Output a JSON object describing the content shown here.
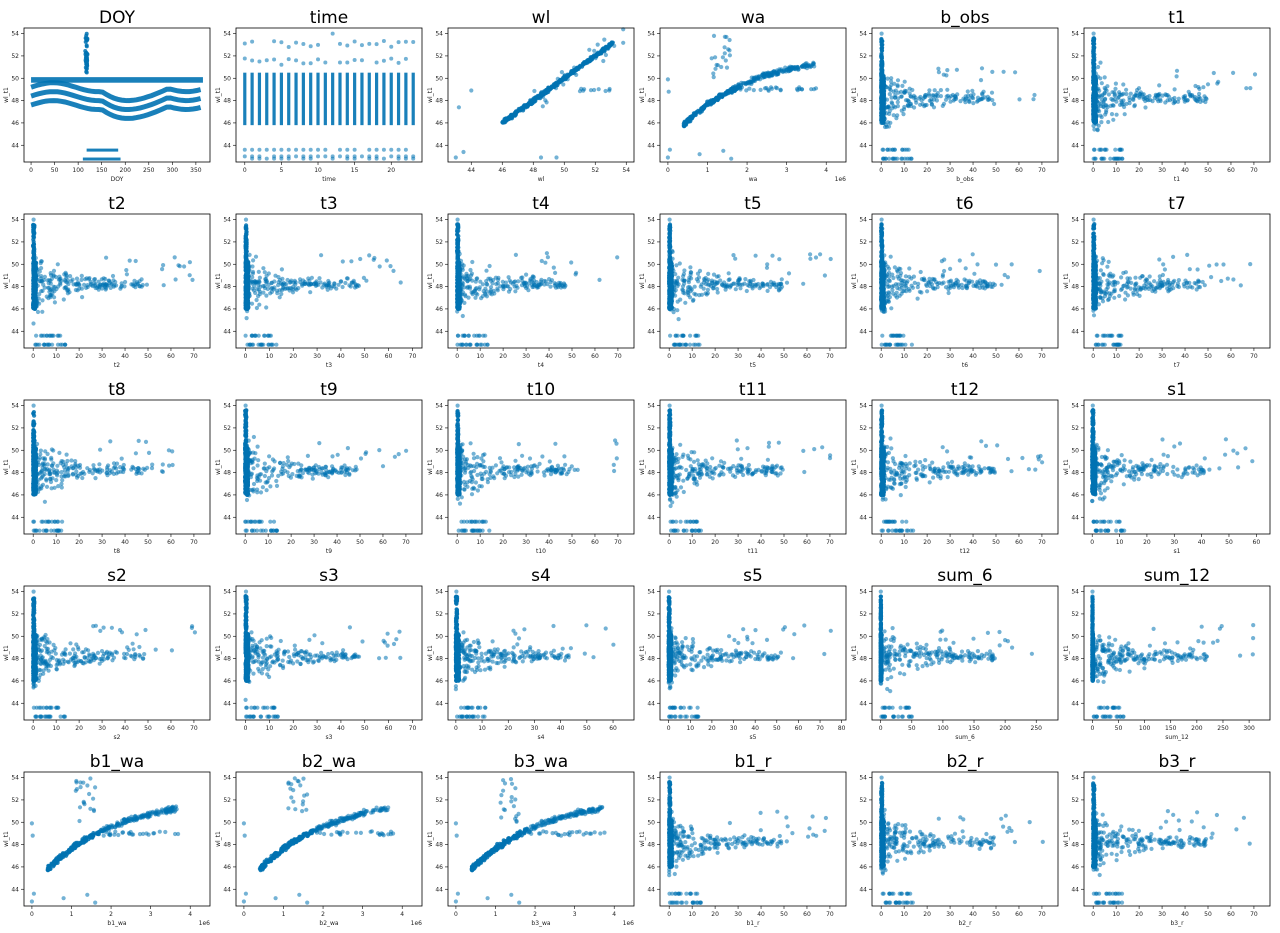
{
  "figure": {
    "ylabel": "wl_t1",
    "ylim": [
      42.5,
      54.5
    ],
    "yticks": [
      44,
      46,
      48,
      50,
      52,
      54
    ],
    "point_color": "#0072b2"
  },
  "chart_data": [
    {
      "type": "scatter",
      "title": "DOY",
      "xlabel": "DOY",
      "xlim": [
        -15,
        380
      ],
      "xticks": [
        0,
        50,
        100,
        150,
        200,
        250,
        300,
        350
      ],
      "multiplier": "",
      "pattern": "doy",
      "y": "wl_t1"
    },
    {
      "type": "scatter",
      "title": "time",
      "xlabel": "time",
      "xlim": [
        -1.2,
        24.2
      ],
      "xticks": [
        0,
        5,
        10,
        15,
        20
      ],
      "multiplier": "",
      "pattern": "time",
      "y": "wl_t1"
    },
    {
      "type": "scatter",
      "title": "wl",
      "xlabel": "wl",
      "xlim": [
        42.5,
        54.5
      ],
      "xticks": [
        44,
        46,
        48,
        50,
        52,
        54
      ],
      "multiplier": "",
      "pattern": "diag",
      "y": "wl_t1"
    },
    {
      "type": "scatter",
      "title": "wa",
      "xlabel": "wa",
      "xlim": [
        -0.2,
        4.5
      ],
      "xticks": [
        0,
        1,
        2,
        3,
        4
      ],
      "multiplier": "1e6",
      "pattern": "wa",
      "y": "wl_t1"
    },
    {
      "type": "scatter",
      "title": "b_obs",
      "xlabel": "b_obs",
      "xlim": [
        -4,
        77
      ],
      "xticks": [
        0,
        10,
        20,
        30,
        40,
        50,
        60,
        70
      ],
      "multiplier": "",
      "pattern": "rain",
      "y": "wl_t1"
    },
    {
      "type": "scatter",
      "title": "t1",
      "xlabel": "t1",
      "xlim": [
        -4,
        77
      ],
      "xticks": [
        0,
        10,
        20,
        30,
        40,
        50,
        60,
        70
      ],
      "multiplier": "",
      "pattern": "rain",
      "y": "wl_t1"
    },
    {
      "type": "scatter",
      "title": "t2",
      "xlabel": "t2",
      "xlim": [
        -4,
        77
      ],
      "xticks": [
        0,
        10,
        20,
        30,
        40,
        50,
        60,
        70
      ],
      "multiplier": "",
      "pattern": "rain",
      "y": "wl_t1"
    },
    {
      "type": "scatter",
      "title": "t3",
      "xlabel": "t3",
      "xlim": [
        -4,
        74
      ],
      "xticks": [
        0,
        10,
        20,
        30,
        40,
        50,
        60,
        70
      ],
      "multiplier": "",
      "pattern": "rain",
      "y": "wl_t1"
    },
    {
      "type": "scatter",
      "title": "t4",
      "xlabel": "t4",
      "xlim": [
        -4,
        77
      ],
      "xticks": [
        0,
        10,
        20,
        30,
        40,
        50,
        60,
        70
      ],
      "multiplier": "",
      "pattern": "rain",
      "y": "wl_t1"
    },
    {
      "type": "scatter",
      "title": "t5",
      "xlabel": "t5",
      "xlim": [
        -4,
        77
      ],
      "xticks": [
        0,
        10,
        20,
        30,
        40,
        50,
        60,
        70
      ],
      "multiplier": "",
      "pattern": "rain",
      "y": "wl_t1"
    },
    {
      "type": "scatter",
      "title": "t6",
      "xlabel": "t6",
      "xlim": [
        -4,
        77
      ],
      "xticks": [
        0,
        10,
        20,
        30,
        40,
        50,
        60,
        70
      ],
      "multiplier": "",
      "pattern": "rain",
      "y": "wl_t1"
    },
    {
      "type": "scatter",
      "title": "t7",
      "xlabel": "t7",
      "xlim": [
        -4,
        77
      ],
      "xticks": [
        0,
        10,
        20,
        30,
        40,
        50,
        60,
        70
      ],
      "multiplier": "",
      "pattern": "rain",
      "y": "wl_t1"
    },
    {
      "type": "scatter",
      "title": "t8",
      "xlabel": "t8",
      "xlim": [
        -4,
        77
      ],
      "xticks": [
        0,
        10,
        20,
        30,
        40,
        50,
        60,
        70
      ],
      "multiplier": "",
      "pattern": "rain",
      "y": "wl_t1"
    },
    {
      "type": "scatter",
      "title": "t9",
      "xlabel": "t9",
      "xlim": [
        -4,
        77
      ],
      "xticks": [
        0,
        10,
        20,
        30,
        40,
        50,
        60,
        70
      ],
      "multiplier": "",
      "pattern": "rain",
      "y": "wl_t1"
    },
    {
      "type": "scatter",
      "title": "t10",
      "xlabel": "t10",
      "xlim": [
        -4,
        77
      ],
      "xticks": [
        0,
        10,
        20,
        30,
        40,
        50,
        60,
        70
      ],
      "multiplier": "",
      "pattern": "rain",
      "y": "wl_t1"
    },
    {
      "type": "scatter",
      "title": "t11",
      "xlabel": "t11",
      "xlim": [
        -4,
        77
      ],
      "xticks": [
        0,
        10,
        20,
        30,
        40,
        50,
        60,
        70
      ],
      "multiplier": "",
      "pattern": "rain",
      "y": "wl_t1"
    },
    {
      "type": "scatter",
      "title": "t12",
      "xlabel": "t12",
      "xlim": [
        -4,
        77
      ],
      "xticks": [
        0,
        10,
        20,
        30,
        40,
        50,
        60,
        70
      ],
      "multiplier": "",
      "pattern": "rain",
      "y": "wl_t1"
    },
    {
      "type": "scatter",
      "title": "s1",
      "xlabel": "s1",
      "xlim": [
        -3,
        65
      ],
      "xticks": [
        0,
        10,
        20,
        30,
        40,
        50,
        60
      ],
      "multiplier": "",
      "pattern": "rain",
      "y": "wl_t1"
    },
    {
      "type": "scatter",
      "title": "s2",
      "xlabel": "s2",
      "xlim": [
        -4,
        77
      ],
      "xticks": [
        0,
        10,
        20,
        30,
        40,
        50,
        60,
        70
      ],
      "multiplier": "",
      "pattern": "rain",
      "y": "wl_t1"
    },
    {
      "type": "scatter",
      "title": "s3",
      "xlabel": "s3",
      "xlim": [
        -4,
        74
      ],
      "xticks": [
        0,
        10,
        20,
        30,
        40,
        50,
        60,
        70
      ],
      "multiplier": "",
      "pattern": "rain",
      "y": "wl_t1"
    },
    {
      "type": "scatter",
      "title": "s4",
      "xlabel": "s4",
      "xlim": [
        -3,
        68
      ],
      "xticks": [
        0,
        10,
        20,
        30,
        40,
        50,
        60
      ],
      "multiplier": "",
      "pattern": "rain",
      "y": "wl_t1"
    },
    {
      "type": "scatter",
      "title": "s5",
      "xlabel": "s5",
      "xlim": [
        -4,
        82
      ],
      "xticks": [
        0,
        10,
        20,
        30,
        40,
        50,
        60,
        70,
        80
      ],
      "multiplier": "",
      "pattern": "rain",
      "y": "wl_t1"
    },
    {
      "type": "scatter",
      "title": "sum_6",
      "xlabel": "sum_6",
      "xlim": [
        -14,
        285
      ],
      "xticks": [
        0,
        50,
        100,
        150,
        200,
        250
      ],
      "multiplier": "",
      "pattern": "rain",
      "y": "wl_t1"
    },
    {
      "type": "scatter",
      "title": "sum_12",
      "xlabel": "sum_12",
      "xlim": [
        -16,
        340
      ],
      "xticks": [
        0,
        50,
        100,
        150,
        200,
        250,
        300
      ],
      "multiplier": "",
      "pattern": "rain",
      "y": "wl_t1"
    },
    {
      "type": "scatter",
      "title": "b1_wa",
      "xlabel": "b1_wa",
      "xlim": [
        -0.2,
        4.5
      ],
      "xticks": [
        0,
        1,
        2,
        3,
        4
      ],
      "multiplier": "1e6",
      "pattern": "wa",
      "y": "wl_t1"
    },
    {
      "type": "scatter",
      "title": "b2_wa",
      "xlabel": "b2_wa",
      "xlim": [
        -0.2,
        4.5
      ],
      "xticks": [
        0,
        1,
        2,
        3,
        4
      ],
      "multiplier": "1e6",
      "pattern": "wa",
      "y": "wl_t1"
    },
    {
      "type": "scatter",
      "title": "b3_wa",
      "xlabel": "b3_wa",
      "xlim": [
        -0.2,
        4.5
      ],
      "xticks": [
        0,
        1,
        2,
        3,
        4
      ],
      "multiplier": "1e6",
      "pattern": "wa",
      "y": "wl_t1"
    },
    {
      "type": "scatter",
      "title": "b1_r",
      "xlabel": "b1_r",
      "xlim": [
        -4,
        77
      ],
      "xticks": [
        0,
        10,
        20,
        30,
        40,
        50,
        60,
        70
      ],
      "multiplier": "",
      "pattern": "rain",
      "y": "wl_t1"
    },
    {
      "type": "scatter",
      "title": "b2_r",
      "xlabel": "b2_r",
      "xlim": [
        -4,
        77
      ],
      "xticks": [
        0,
        10,
        20,
        30,
        40,
        50,
        60,
        70
      ],
      "multiplier": "",
      "pattern": "rain",
      "y": "wl_t1"
    },
    {
      "type": "scatter",
      "title": "b3_r",
      "xlabel": "b3_r",
      "xlim": [
        -4,
        77
      ],
      "xticks": [
        0,
        10,
        20,
        30,
        40,
        50,
        60,
        70
      ],
      "multiplier": "",
      "pattern": "rain",
      "y": "wl_t1"
    }
  ]
}
